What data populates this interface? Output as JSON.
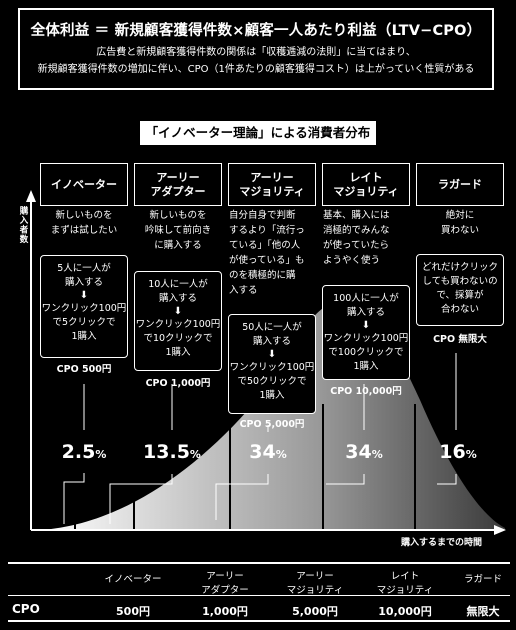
{
  "header": {
    "title": "全体利益 ＝ 新規顧客獲得件数×顧客一人あたり利益（LTV−CPO）",
    "desc1": "広告費と新規顧客獲得件数の関係は「収穫逓減の法則」に当てはまり、",
    "desc2": "新規顧客獲得件数の増加に伴い、CPO（1件あたりの顧客獲得コスト）は上がっていく性質がある"
  },
  "chart_title": "「イノベーター理論」による消費者分布",
  "axis": {
    "y_label": "購入者数",
    "x_label": "購入するまでの時間"
  },
  "segments": [
    {
      "name": "イノベーター",
      "desc": "新しいものを\nまずは試したい",
      "note": "5人に一人が\n購入する",
      "arrow": "⬇",
      "calc": "ワンクリック100円\nで5クリックで\n1購入",
      "cpo": "CPO 500円",
      "percent": "2.5",
      "percent_unit": "%"
    },
    {
      "name": "アーリー\nアダプター",
      "desc": "新しいものを\n吟味して前向き\nに購入する",
      "note": "10人に一人が\n購入する",
      "arrow": "⬇",
      "calc": "ワンクリック100円\nで10クリックで\n1購入",
      "cpo": "CPO 1,000円",
      "percent": "13.5",
      "percent_unit": "%"
    },
    {
      "name": "アーリー\nマジョリティ",
      "desc": "自分自身で判断\nするより「流行っ\nている」「他の人\nが使っている」も\nのを積極的に購\n入する",
      "note": "50人に一人が\n購入する",
      "arrow": "⬇",
      "calc": "ワンクリック100円\nで50クリックで\n1購入",
      "cpo": "CPO 5,000円",
      "percent": "34",
      "percent_unit": "%"
    },
    {
      "name": "レイト\nマジョリティ",
      "desc": "基本、購入には\n消極的でみんな\nが使っていたら\nようやく使う",
      "note": "100人に一人が\n購入する",
      "arrow": "⬇",
      "calc": "ワンクリック100円\nで100クリックで\n1購入",
      "cpo": "CPO 10,000円",
      "percent": "34",
      "percent_unit": "%"
    },
    {
      "name": "ラガード",
      "desc": "絶対に\n買わない",
      "note": "",
      "arrow": "",
      "calc": "どれだけクリック\nしても買わないの\nで、採算が\n合わない",
      "cpo": "CPO 無限大",
      "percent": "16",
      "percent_unit": "%"
    }
  ],
  "table": {
    "row_label": "CPO",
    "headers": [
      "イノベーター",
      "アーリー\nアダプター",
      "アーリー\nマジョリティ",
      "レイト\nマジョリティ",
      "ラガード"
    ],
    "values": [
      "500円",
      "1,000円",
      "5,000円",
      "10,000円",
      "無限大"
    ]
  }
}
